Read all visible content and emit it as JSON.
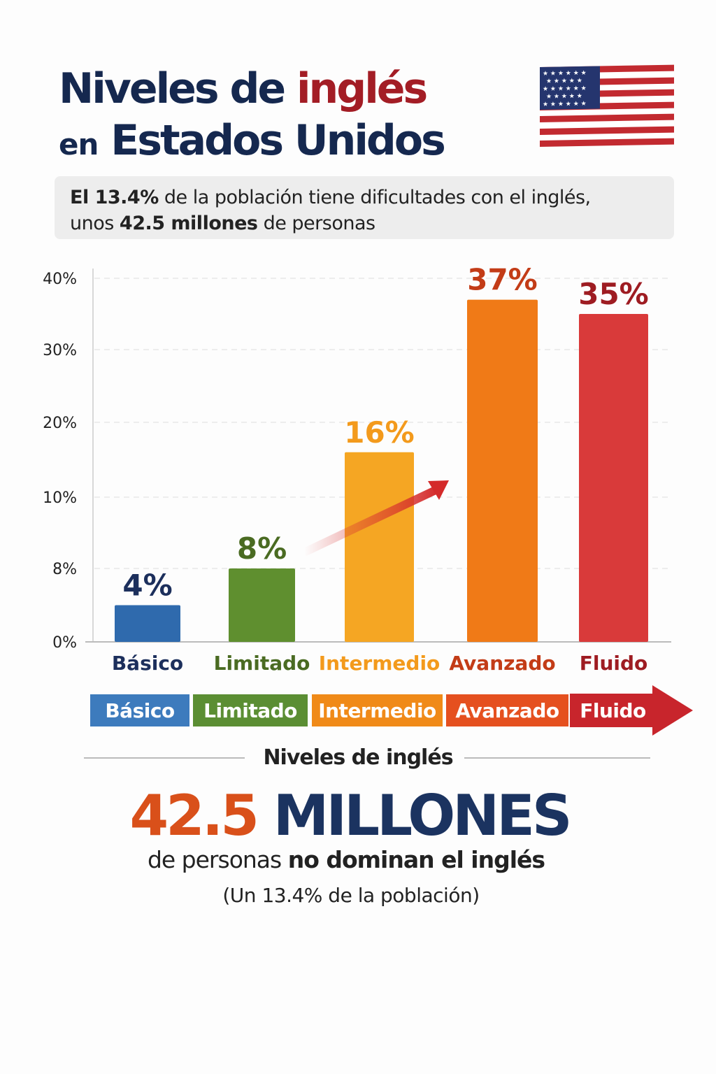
{
  "header": {
    "title_part1": "Niveles de",
    "title_part2": "inglés",
    "title_line2_small": "en",
    "title_line2": "Estados Unidos",
    "flag_icon": "us-flag-icon"
  },
  "infobox": {
    "l1_bold": "El 13.4%",
    "l1_rest": " de la población tiene dificultades con el inglés,",
    "l2_a": "unos ",
    "l2_bold": "42.5 millones",
    "l2_rest": " de personas"
  },
  "chart_data": {
    "type": "bar",
    "categories": [
      "Básico",
      "Limitado",
      "Intermedio",
      "Avanzado",
      "Fluido"
    ],
    "values": [
      4,
      8,
      16,
      37,
      35
    ],
    "data_labels": [
      "4%",
      "8%",
      "16%",
      "37%",
      "35%"
    ],
    "y_ticks": [
      0,
      8,
      10,
      20,
      30,
      40
    ],
    "y_tick_labels": [
      "0%",
      "8%",
      "10%",
      "20%",
      "30%",
      "40%"
    ],
    "ylim": [
      0,
      40
    ],
    "grid": true,
    "colors": [
      "#2f6aad",
      "#5f8f2f",
      "#f5a623",
      "#f07a17",
      "#d93a3a"
    ],
    "label_colors": [
      "#1c2f5c",
      "#4a6b22",
      "#f39a1c",
      "#c33c17",
      "#9e1c22"
    ],
    "xlabel": "",
    "ylabel": ""
  },
  "scale": {
    "items": [
      "Básico",
      "Limitado",
      "Intermedio",
      "Avanzado",
      "Fluido"
    ],
    "colors": [
      "#3d7bbd",
      "#5b8e33",
      "#f08a18",
      "#e5501f",
      "#c8252c"
    ],
    "title": "Niveles de inglés"
  },
  "summary": {
    "number": "42.5",
    "unit": "MILLONES",
    "line1_a": "de personas ",
    "line1_bold": "no dominan el inglés",
    "line2": "(Un 13.4% de la población)",
    "number_color": "#d9501a",
    "unit_color": "#1b3360"
  }
}
